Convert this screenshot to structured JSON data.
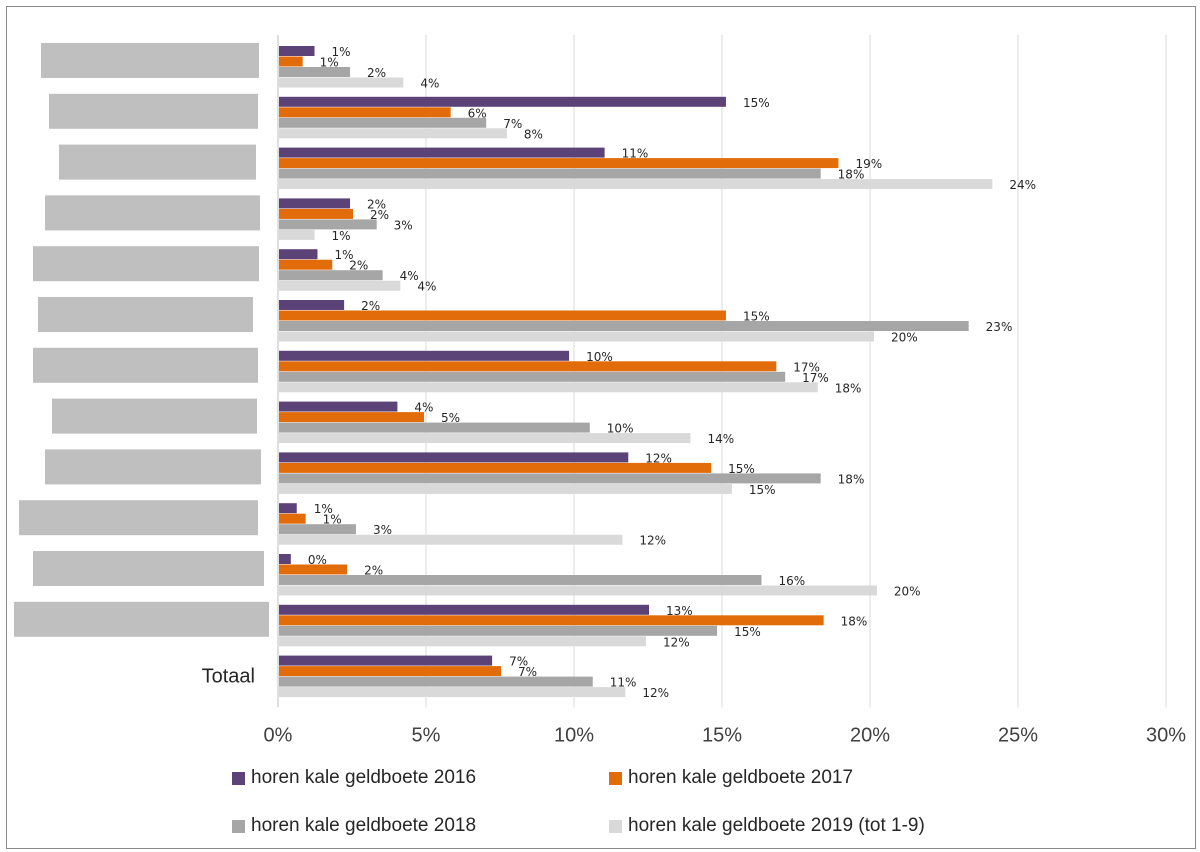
{
  "chart_data": {
    "type": "bar",
    "orientation": "horizontal",
    "categories": [
      "",
      "",
      "",
      "",
      "",
      "",
      "",
      "",
      "",
      "",
      "",
      "",
      "Totaal"
    ],
    "redacted_category_labels": true,
    "xlim": [
      0,
      30
    ],
    "x_ticks": [
      0,
      5,
      10,
      15,
      20,
      25,
      30
    ],
    "x_tick_labels": [
      "0%",
      "5%",
      "10%",
      "15%",
      "20%",
      "25%",
      "30%"
    ],
    "value_unit": "%",
    "grid": "vertical",
    "legend_position": "bottom",
    "series": [
      {
        "name": "horen kale geldboete 2016",
        "color": "#5b4378",
        "values": [
          1.2,
          15.1,
          11.0,
          2.4,
          1.3,
          2.2,
          9.8,
          4.0,
          11.8,
          0.6,
          0.4,
          12.5,
          7.2
        ],
        "labels": [
          "1%",
          "15%",
          "11%",
          "2%",
          "1%",
          "2%",
          "10%",
          "4%",
          "12%",
          "1%",
          "0%",
          "13%",
          "7%"
        ]
      },
      {
        "name": "horen kale geldboete 2017",
        "color": "#e36c0a",
        "values": [
          0.8,
          5.8,
          18.9,
          2.5,
          1.8,
          15.1,
          16.8,
          4.9,
          14.6,
          0.9,
          2.3,
          18.4,
          7.5
        ],
        "labels": [
          "1%",
          "6%",
          "19%",
          "2%",
          "2%",
          "15%",
          "17%",
          "5%",
          "15%",
          "1%",
          "2%",
          "18%",
          "7%"
        ]
      },
      {
        "name": "horen kale geldboete 2018",
        "color": "#a6a6a6",
        "values": [
          2.4,
          7.0,
          18.3,
          3.3,
          3.5,
          23.3,
          17.1,
          10.5,
          18.3,
          2.6,
          16.3,
          14.8,
          10.6
        ],
        "labels": [
          "2%",
          "7%",
          "18%",
          "3%",
          "4%",
          "23%",
          "17%",
          "10%",
          "18%",
          "3%",
          "16%",
          "15%",
          "11%"
        ]
      },
      {
        "name": "horen kale geldboete 2019 (tot 1-9)",
        "color": "#d9d9d9",
        "values": [
          4.2,
          7.7,
          24.1,
          1.2,
          4.1,
          20.1,
          18.2,
          13.9,
          15.3,
          11.6,
          20.2,
          12.4,
          11.7
        ],
        "labels": [
          "4%",
          "8%",
          "24%",
          "1%",
          "4%",
          "20%",
          "18%",
          "14%",
          "15%",
          "12%",
          "20%",
          "12%",
          "12%"
        ]
      }
    ]
  }
}
